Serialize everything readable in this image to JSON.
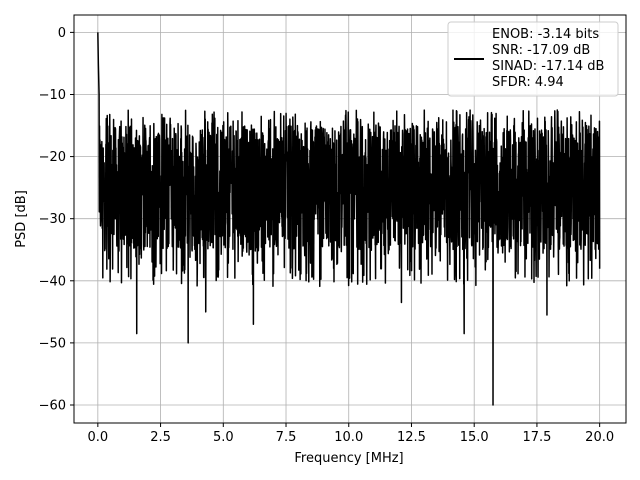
{
  "chart_data": {
    "type": "line",
    "title": "",
    "xlabel": "Frequency [MHz]",
    "ylabel": "PSD [dB]",
    "xlim": [
      -0.95,
      21.05
    ],
    "ylim": [
      -62.9,
      2.8
    ],
    "xticks": [
      0.0,
      2.5,
      5.0,
      7.5,
      10.0,
      12.5,
      15.0,
      17.5,
      20.0
    ],
    "xtick_labels": [
      "0.0",
      "2.5",
      "5.0",
      "7.5",
      "10.0",
      "12.5",
      "15.0",
      "17.5",
      "20.0"
    ],
    "yticks": [
      0,
      -10,
      -20,
      -30,
      -40,
      -50,
      -60
    ],
    "ytick_labels": [
      "0",
      "−10",
      "−20",
      "−30",
      "−40",
      "−50",
      "−60"
    ],
    "grid": true,
    "legend_position": "top-right",
    "line_color": "#000000",
    "series": [
      {
        "legend_lines": [
          "ENOB: -3.14 bits",
          "SNR: -17.09 dB",
          "SINAD: -17.14 dB",
          "SFDR: 4.94"
        ],
        "x_range": [
          0.0,
          20.0
        ],
        "typical_upper_envelope_db": -15,
        "typical_lower_envelope_db": -35,
        "peaks": [
          {
            "x": 0.0,
            "y": 0.0
          },
          {
            "x": 0.02,
            "y": -5.0
          },
          {
            "x": 0.05,
            "y": -10.0
          }
        ],
        "notable_minima": [
          {
            "x": 1.55,
            "y": -48.5
          },
          {
            "x": 3.6,
            "y": -50.0
          },
          {
            "x": 6.2,
            "y": -47.0
          },
          {
            "x": 15.75,
            "y": -60.0
          },
          {
            "x": 14.6,
            "y": -48.5
          },
          {
            "x": 17.9,
            "y": -45.5
          },
          {
            "x": 12.1,
            "y": -43.5
          },
          {
            "x": 4.3,
            "y": -45.0
          }
        ]
      }
    ]
  }
}
